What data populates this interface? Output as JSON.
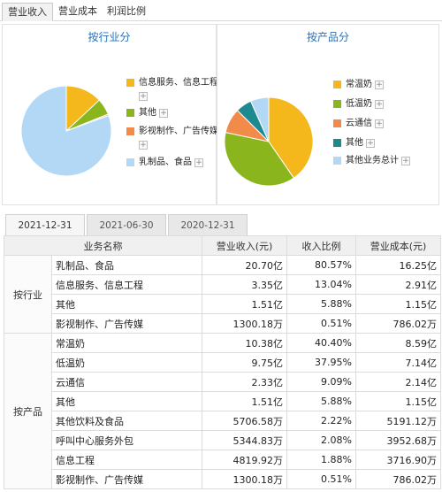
{
  "top_tabs": [
    {
      "label": "营业收入",
      "active": true
    },
    {
      "label": "营业成本",
      "active": false
    },
    {
      "label": "利润比例",
      "active": false
    }
  ],
  "charts": {
    "industry": {
      "title": "按行业分",
      "legend": [
        {
          "label": "信息服务、信息工程",
          "color": "#f5b81c",
          "percent": 13.04
        },
        {
          "label": "其他",
          "color": "#8ab51c",
          "percent": 5.88
        },
        {
          "label": "影视制作、广告传媒",
          "color": "#f28a4a",
          "percent": 0.51
        },
        {
          "label": "乳制品、食品",
          "color": "#b3d8f6",
          "percent": 80.57
        }
      ]
    },
    "product": {
      "title": "按产品分",
      "legend": [
        {
          "label": "常温奶",
          "color": "#f5b81c",
          "percent": 40.4
        },
        {
          "label": "低温奶",
          "color": "#8ab51c",
          "percent": 37.95
        },
        {
          "label": "云通信",
          "color": "#f28a4a",
          "percent": 9.09
        },
        {
          "label": "其他",
          "color": "#1c8a8e",
          "percent": 5.88
        },
        {
          "label": "其他业务总计",
          "color": "#b3d8f6",
          "percent": 6.68
        }
      ]
    }
  },
  "date_tabs": [
    {
      "label": "2021-12-31",
      "active": true
    },
    {
      "label": "2021-06-30",
      "active": false
    },
    {
      "label": "2020-12-31",
      "active": false
    }
  ],
  "table": {
    "headers": [
      "业务名称",
      "营业收入(元)",
      "收入比例",
      "营业成本(元)"
    ],
    "groups": [
      {
        "name": "按行业",
        "rows": [
          {
            "name": "乳制品、食品",
            "revenue": "20.70亿",
            "ratio": "80.57%",
            "cost": "16.25亿"
          },
          {
            "name": "信息服务、信息工程",
            "revenue": "3.35亿",
            "ratio": "13.04%",
            "cost": "2.91亿"
          },
          {
            "name": "其他",
            "revenue": "1.51亿",
            "ratio": "5.88%",
            "cost": "1.15亿"
          },
          {
            "name": "影视制作、广告传媒",
            "revenue": "1300.18万",
            "ratio": "0.51%",
            "cost": "786.02万"
          }
        ]
      },
      {
        "name": "按产品",
        "rows": [
          {
            "name": "常温奶",
            "revenue": "10.38亿",
            "ratio": "40.40%",
            "cost": "8.59亿"
          },
          {
            "name": "低温奶",
            "revenue": "9.75亿",
            "ratio": "37.95%",
            "cost": "7.14亿"
          },
          {
            "name": "云通信",
            "revenue": "2.33亿",
            "ratio": "9.09%",
            "cost": "2.14亿"
          },
          {
            "name": "其他",
            "revenue": "1.51亿",
            "ratio": "5.88%",
            "cost": "1.15亿"
          },
          {
            "name": "其他饮料及食品",
            "revenue": "5706.58万",
            "ratio": "2.22%",
            "cost": "5191.12万"
          },
          {
            "name": "呼叫中心服务外包",
            "revenue": "5344.83万",
            "ratio": "2.08%",
            "cost": "3952.68万"
          },
          {
            "name": "信息工程",
            "revenue": "4819.92万",
            "ratio": "1.88%",
            "cost": "3716.90万"
          },
          {
            "name": "影视制作、广告传媒",
            "revenue": "1300.18万",
            "ratio": "0.51%",
            "cost": "786.02万"
          }
        ]
      }
    ]
  }
}
